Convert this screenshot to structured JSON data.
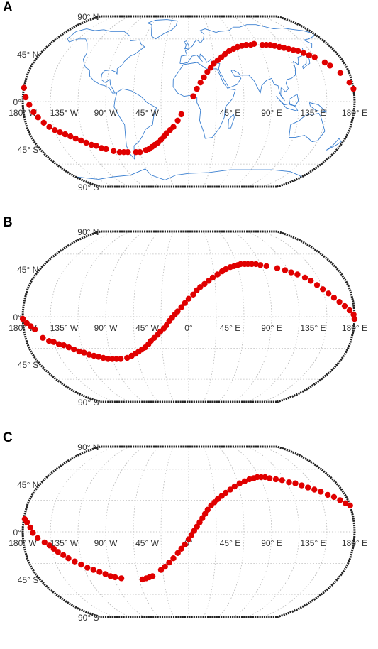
{
  "panels": [
    {
      "label": "A",
      "show_coastlines": true,
      "lat_labels": [
        "90° N",
        "45° N",
        "0°",
        "45° S",
        "90° S"
      ],
      "lon_labels": [
        "180° W",
        "135° W",
        "90° W",
        "45° W",
        "45° E",
        "90° E",
        "135° E",
        "180° E"
      ]
    },
    {
      "label": "B",
      "show_coastlines": false,
      "lat_labels": [
        "90° N",
        "45° N",
        "0°",
        "45° S",
        "90° S"
      ],
      "lon_labels": [
        "180° W",
        "135° W",
        "90° W",
        "45° W",
        "0°",
        "45° E",
        "90° E",
        "135° E",
        "180° E"
      ]
    },
    {
      "label": "C",
      "show_coastlines": false,
      "lat_labels": [
        "90° N",
        "45° N",
        "0°",
        "45° S",
        "90° S"
      ],
      "lon_labels": [
        "180° W",
        "135° W",
        "90° W",
        "45° W",
        "0°",
        "45° E",
        "90° E",
        "135° E",
        "180° E"
      ]
    }
  ],
  "colors": {
    "point": "#e00000",
    "frame": "#222222",
    "grid": "#b8b8b8",
    "coast": "#3a7fd0",
    "text": "#333333"
  },
  "chart_data": [
    {
      "type": "scatter",
      "projection": "Robinson",
      "panel": "A",
      "xlabel": "",
      "ylabel": "",
      "xlim": [
        -180,
        180
      ],
      "ylim": [
        -90,
        90
      ],
      "grid": true,
      "coastlines": true,
      "points": [
        [
          -180,
          13
        ],
        [
          -177,
          4
        ],
        [
          -173,
          -3
        ],
        [
          -169,
          -10
        ],
        [
          -165,
          -15
        ],
        [
          -160,
          -20
        ],
        [
          -155,
          -24
        ],
        [
          -150,
          -27
        ],
        [
          -145,
          -29
        ],
        [
          -140,
          -31
        ],
        [
          -135,
          -33
        ],
        [
          -130,
          -35
        ],
        [
          -125,
          -37
        ],
        [
          -120,
          -39
        ],
        [
          -115,
          -41
        ],
        [
          -110,
          -42
        ],
        [
          -105,
          -44
        ],
        [
          -100,
          -45
        ],
        [
          -92,
          -47
        ],
        [
          -85,
          -48
        ],
        [
          -80,
          -48
        ],
        [
          -75,
          -48
        ],
        [
          -65,
          -48
        ],
        [
          -60,
          -48
        ],
        [
          -52,
          -46
        ],
        [
          -48,
          -45
        ],
        [
          -44,
          -43
        ],
        [
          -40,
          -41
        ],
        [
          -36,
          -39
        ],
        [
          -32,
          -36
        ],
        [
          -28,
          -33
        ],
        [
          -25,
          -30
        ],
        [
          -21,
          -27
        ],
        [
          -17,
          -24
        ],
        [
          -12,
          -18
        ],
        [
          -8,
          -12
        ],
        [
          5,
          5
        ],
        [
          9,
          12
        ],
        [
          13,
          18
        ],
        [
          17,
          23
        ],
        [
          21,
          28
        ],
        [
          25,
          32
        ],
        [
          29,
          36
        ],
        [
          34,
          39
        ],
        [
          39,
          42
        ],
        [
          44,
          45
        ],
        [
          50,
          48
        ],
        [
          56,
          50
        ],
        [
          62,
          52
        ],
        [
          68,
          53
        ],
        [
          74,
          54
        ],
        [
          80,
          54
        ],
        [
          85,
          55
        ],
        [
          95,
          54
        ],
        [
          100,
          54
        ],
        [
          105,
          54
        ],
        [
          110,
          53
        ],
        [
          115,
          52
        ],
        [
          120,
          51
        ],
        [
          125,
          50
        ],
        [
          130,
          49
        ],
        [
          135,
          48
        ],
        [
          140,
          46
        ],
        [
          145,
          44
        ],
        [
          150,
          42
        ],
        [
          158,
          37
        ],
        [
          162,
          34
        ],
        [
          170,
          27
        ],
        [
          177,
          18
        ],
        [
          180,
          12
        ]
      ]
    },
    {
      "type": "scatter",
      "projection": "Robinson",
      "panel": "B",
      "xlabel": "",
      "ylabel": "",
      "xlim": [
        -180,
        180
      ],
      "ylim": [
        -90,
        90
      ],
      "grid": true,
      "coastlines": false,
      "points": [
        [
          -180,
          -2
        ],
        [
          -176,
          -6
        ],
        [
          -172,
          -9
        ],
        [
          -168,
          -12
        ],
        [
          -161,
          -20
        ],
        [
          -155,
          -23
        ],
        [
          -150,
          -24
        ],
        [
          -145,
          -26
        ],
        [
          -140,
          -27
        ],
        [
          -135,
          -29
        ],
        [
          -130,
          -31
        ],
        [
          -125,
          -33
        ],
        [
          -120,
          -34
        ],
        [
          -115,
          -36
        ],
        [
          -110,
          -37
        ],
        [
          -105,
          -38
        ],
        [
          -100,
          -39
        ],
        [
          -95,
          -40
        ],
        [
          -90,
          -40
        ],
        [
          -85,
          -40
        ],
        [
          -80,
          -40
        ],
        [
          -72,
          -39
        ],
        [
          -66,
          -37
        ],
        [
          -61,
          -35
        ],
        [
          -57,
          -33
        ],
        [
          -53,
          -31
        ],
        [
          -49,
          -29
        ],
        [
          -45,
          -26
        ],
        [
          -42,
          -23
        ],
        [
          -38,
          -20
        ],
        [
          -34,
          -17
        ],
        [
          -31,
          -14
        ],
        [
          -27,
          -11
        ],
        [
          -24,
          -8
        ],
        [
          -21,
          -4
        ],
        [
          -18,
          -1
        ],
        [
          -15,
          2
        ],
        [
          -12,
          5
        ],
        [
          -8,
          9
        ],
        [
          -4,
          13
        ],
        [
          0,
          17
        ],
        [
          5,
          21
        ],
        [
          9,
          25
        ],
        [
          13,
          28
        ],
        [
          18,
          31
        ],
        [
          23,
          34
        ],
        [
          28,
          37
        ],
        [
          34,
          40
        ],
        [
          40,
          43
        ],
        [
          45,
          45
        ],
        [
          51,
          47
        ],
        [
          56,
          48
        ],
        [
          61,
          49
        ],
        [
          65,
          50
        ],
        [
          70,
          50
        ],
        [
          74,
          50
        ],
        [
          79,
          50
        ],
        [
          84,
          50
        ],
        [
          89,
          49
        ],
        [
          96,
          48
        ],
        [
          108,
          46
        ],
        [
          116,
          44
        ],
        [
          122,
          42
        ],
        [
          128,
          40
        ],
        [
          135,
          37
        ],
        [
          140,
          34
        ],
        [
          145,
          30
        ],
        [
          150,
          26
        ],
        [
          155,
          22
        ],
        [
          160,
          18
        ],
        [
          165,
          14
        ],
        [
          170,
          10
        ],
        [
          175,
          6
        ],
        [
          179,
          2
        ],
        [
          180,
          -2
        ]
      ]
    },
    {
      "type": "scatter",
      "projection": "Robinson",
      "panel": "C",
      "xlabel": "",
      "ylabel": "",
      "xlim": [
        -180,
        180
      ],
      "ylim": [
        -90,
        90
      ],
      "grid": true,
      "coastlines": false,
      "points": [
        [
          -179,
          12
        ],
        [
          -176,
          9
        ],
        [
          -172,
          4
        ],
        [
          -169,
          -1
        ],
        [
          -164,
          -6
        ],
        [
          -157,
          -10
        ],
        [
          -152,
          -13
        ],
        [
          -148,
          -16
        ],
        [
          -144,
          -19
        ],
        [
          -139,
          -22
        ],
        [
          -134,
          -25
        ],
        [
          -128,
          -28
        ],
        [
          -122,
          -31
        ],
        [
          -116,
          -34
        ],
        [
          -110,
          -36
        ],
        [
          -104,
          -38
        ],
        [
          -98,
          -40
        ],
        [
          -93,
          -42
        ],
        [
          -88,
          -43
        ],
        [
          -81,
          -44
        ],
        [
          -56,
          -45
        ],
        [
          -51,
          -44
        ],
        [
          -47,
          -43
        ],
        [
          -43,
          -42
        ],
        [
          -32,
          -36
        ],
        [
          -27,
          -33
        ],
        [
          -22,
          -29
        ],
        [
          -17,
          -25
        ],
        [
          -12,
          -20
        ],
        [
          -8,
          -16
        ],
        [
          -4,
          -12
        ],
        [
          0,
          -7
        ],
        [
          3,
          -3
        ],
        [
          6,
          1
        ],
        [
          9,
          5
        ],
        [
          12,
          9
        ],
        [
          15,
          13
        ],
        [
          18,
          17
        ],
        [
          21,
          21
        ],
        [
          25,
          25
        ],
        [
          29,
          28
        ],
        [
          33,
          31
        ],
        [
          38,
          34
        ],
        [
          43,
          37
        ],
        [
          49,
          40
        ],
        [
          55,
          43
        ],
        [
          62,
          46
        ],
        [
          69,
          48
        ],
        [
          76,
          50
        ],
        [
          82,
          51
        ],
        [
          87,
          52
        ],
        [
          92,
          52
        ],
        [
          97,
          52
        ],
        [
          102,
          51
        ],
        [
          109,
          50
        ],
        [
          116,
          49
        ],
        [
          123,
          47
        ],
        [
          130,
          46
        ],
        [
          136,
          44
        ],
        [
          142,
          42
        ],
        [
          148,
          40
        ],
        [
          154,
          38
        ],
        [
          160,
          35
        ],
        [
          166,
          33
        ],
        [
          171,
          30
        ],
        [
          176,
          27
        ],
        [
          180,
          25
        ]
      ]
    }
  ]
}
